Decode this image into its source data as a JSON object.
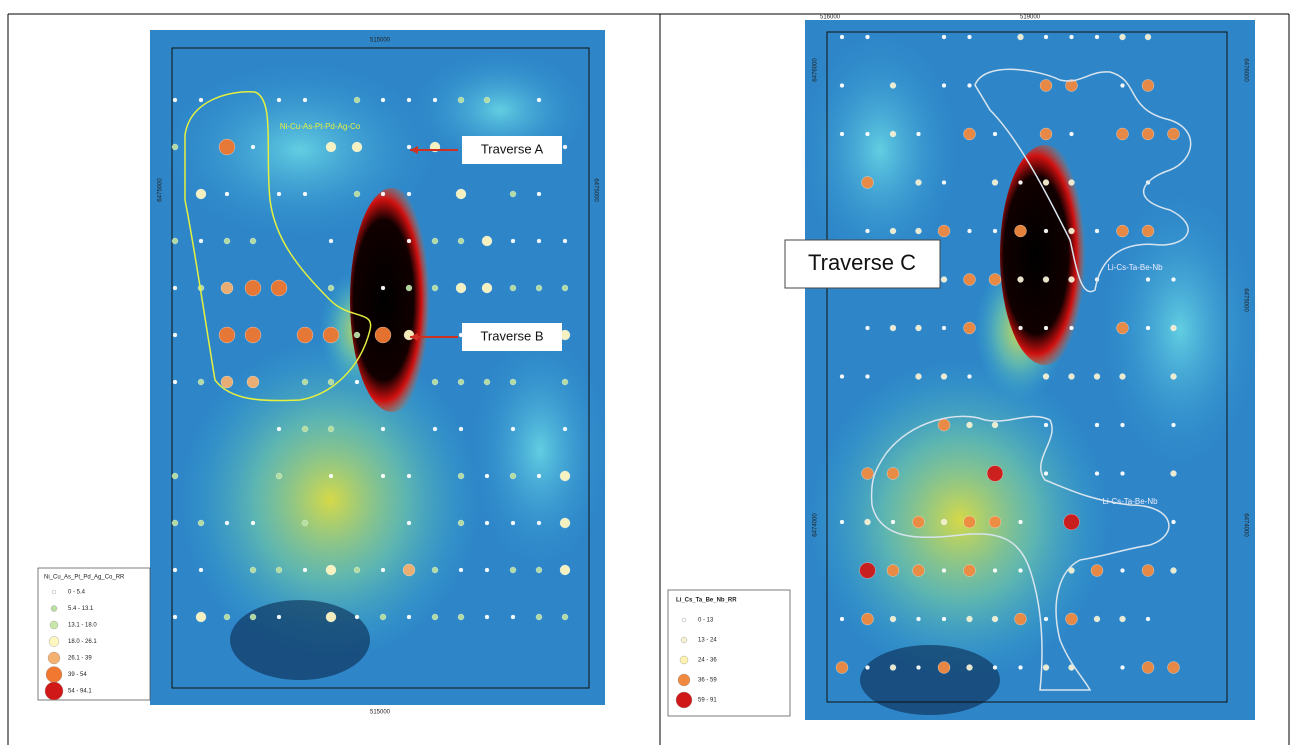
{
  "left_map": {
    "axis_labels": {
      "top": "515000",
      "bottom": "515000",
      "left": "6475000",
      "right": "6475000"
    },
    "zone_label": "Ni-Cu-As-Pt-Pd-Ag-Co",
    "traverses": [
      "Traverse A",
      "Traverse B"
    ],
    "legend": {
      "title": "Ni_Cu_As_Pt_Pd_Ag_Co_RR",
      "items": [
        "0 - 5.4",
        "5.4 - 13.1",
        "13.1 - 18.0",
        "18.0 - 26.1",
        "26.1 - 39",
        "39 - 54",
        "54 - 94.1"
      ]
    }
  },
  "right_map": {
    "axis_labels": {
      "top_left": "516000",
      "top_right": "519000",
      "left_top": "6476000",
      "left_bottom": "6474000",
      "right_top": "6476000",
      "right_mid": "6475000",
      "right_bottom": "6474000"
    },
    "traverse": "Traverse C",
    "zone_labels": [
      "Li-Cs-Ta-Be-Nb",
      "Li-Cs-Ta-Be-Nb"
    ],
    "legend": {
      "title": "Li_Cs_Ta_Be_Nb_RR",
      "items": [
        "0 - 13",
        "13 - 24",
        "24 - 36",
        "36 - 59",
        "59 - 91"
      ]
    }
  }
}
